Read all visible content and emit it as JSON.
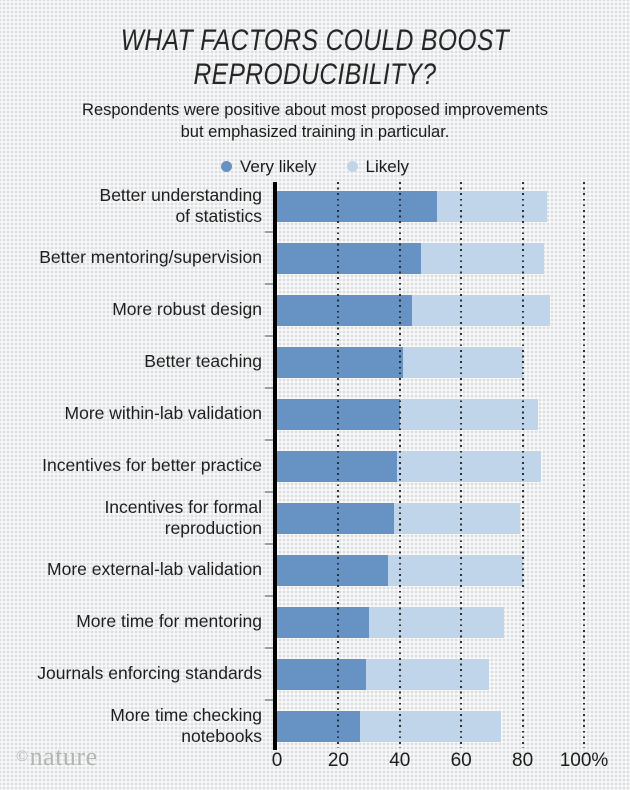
{
  "header": {
    "title_line1": "WHAT FACTORS COULD BOOST",
    "title_line2": "REPRODUCIBILITY?",
    "subtitle_line1": "Respondents were positive about most proposed improvements",
    "subtitle_line2": "but emphasized training in particular."
  },
  "brand": {
    "symbol": "©",
    "name": "nature"
  },
  "chart_data": {
    "type": "bar",
    "orientation": "horizontal",
    "stacked": true,
    "legend_position": "top",
    "grid": "dotted-vertical",
    "xlim": [
      0,
      100
    ],
    "x_ticks": [
      "0",
      "20",
      "40",
      "60",
      "80",
      "100%"
    ],
    "x_tick_values": [
      0,
      20,
      40,
      60,
      80,
      100
    ],
    "gridline_values": [
      20,
      40,
      60,
      80,
      100
    ],
    "categories": [
      "Better understanding\nof statistics",
      "Better mentoring/supervision",
      "More robust design",
      "Better teaching",
      "More within-lab validation",
      "Incentives for better practice",
      "Incentives for formal\nreproduction",
      "More external-lab validation",
      "More time for mentoring",
      "Journals enforcing standards",
      "More time checking\nnotebooks"
    ],
    "series": [
      {
        "name": "Very likely",
        "color": "#6692c4",
        "values": [
          52,
          47,
          44,
          41,
          40,
          39,
          38,
          36,
          30,
          29,
          27
        ]
      },
      {
        "name": "Likely",
        "color": "#c0d4ea",
        "values": [
          36,
          40,
          45,
          39,
          45,
          47,
          41,
          44,
          44,
          40,
          46
        ]
      }
    ],
    "totals": [
      88,
      87,
      89,
      80,
      85,
      86,
      79,
      80,
      74,
      69,
      73
    ]
  }
}
